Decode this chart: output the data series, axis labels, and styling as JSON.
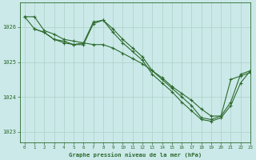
{
  "title": "Graphe pression niveau de la mer (hPa)",
  "bg_color": "#cbe9e9",
  "grid_color": "#b0d4cc",
  "line_color": "#2d6a2d",
  "xlim": [
    -0.5,
    23
  ],
  "ylim": [
    1022.7,
    1026.7
  ],
  "yticks": [
    1023,
    1024,
    1025,
    1026
  ],
  "xticks": [
    0,
    1,
    2,
    3,
    4,
    5,
    6,
    7,
    8,
    9,
    10,
    11,
    12,
    13,
    14,
    15,
    16,
    17,
    18,
    19,
    20,
    21,
    22,
    23
  ],
  "series1_x": [
    0,
    1,
    2,
    3,
    4,
    5,
    6,
    7,
    8,
    9,
    10,
    11,
    12,
    13,
    14,
    15,
    16,
    17,
    18,
    19,
    20,
    21,
    22,
    23
  ],
  "series1_y": [
    1026.3,
    1026.3,
    1025.9,
    1025.8,
    1025.65,
    1025.6,
    1025.55,
    1025.5,
    1025.5,
    1025.4,
    1025.25,
    1025.1,
    1024.95,
    1024.75,
    1024.55,
    1024.3,
    1024.1,
    1023.9,
    1023.65,
    1023.45,
    1023.45,
    1023.85,
    1024.65,
    1024.75
  ],
  "series2_x": [
    0,
    1,
    2,
    3,
    4,
    5,
    6,
    7,
    8,
    9,
    10,
    11,
    12,
    13,
    14,
    15,
    16,
    17,
    18,
    19,
    20,
    21,
    22,
    23
  ],
  "series2_y": [
    1026.3,
    1025.95,
    1025.85,
    1025.65,
    1025.55,
    1025.5,
    1025.55,
    1026.15,
    1026.2,
    1025.95,
    1025.65,
    1025.4,
    1025.15,
    1024.75,
    1024.5,
    1024.25,
    1024.0,
    1023.75,
    1023.4,
    1023.35,
    1023.45,
    1024.5,
    1024.6,
    1024.7
  ],
  "series3_x": [
    1,
    2,
    3,
    4,
    5,
    6,
    7,
    8,
    9,
    10,
    11,
    12,
    13,
    14,
    15,
    16,
    17,
    18,
    19,
    20,
    21,
    22,
    23
  ],
  "series3_y": [
    1025.95,
    1025.85,
    1025.65,
    1025.6,
    1025.5,
    1025.5,
    1026.1,
    1026.2,
    1025.85,
    1025.55,
    1025.3,
    1025.05,
    1024.65,
    1024.4,
    1024.15,
    1023.85,
    1023.6,
    1023.35,
    1023.3,
    1023.4,
    1023.75,
    1024.4,
    1024.75
  ]
}
